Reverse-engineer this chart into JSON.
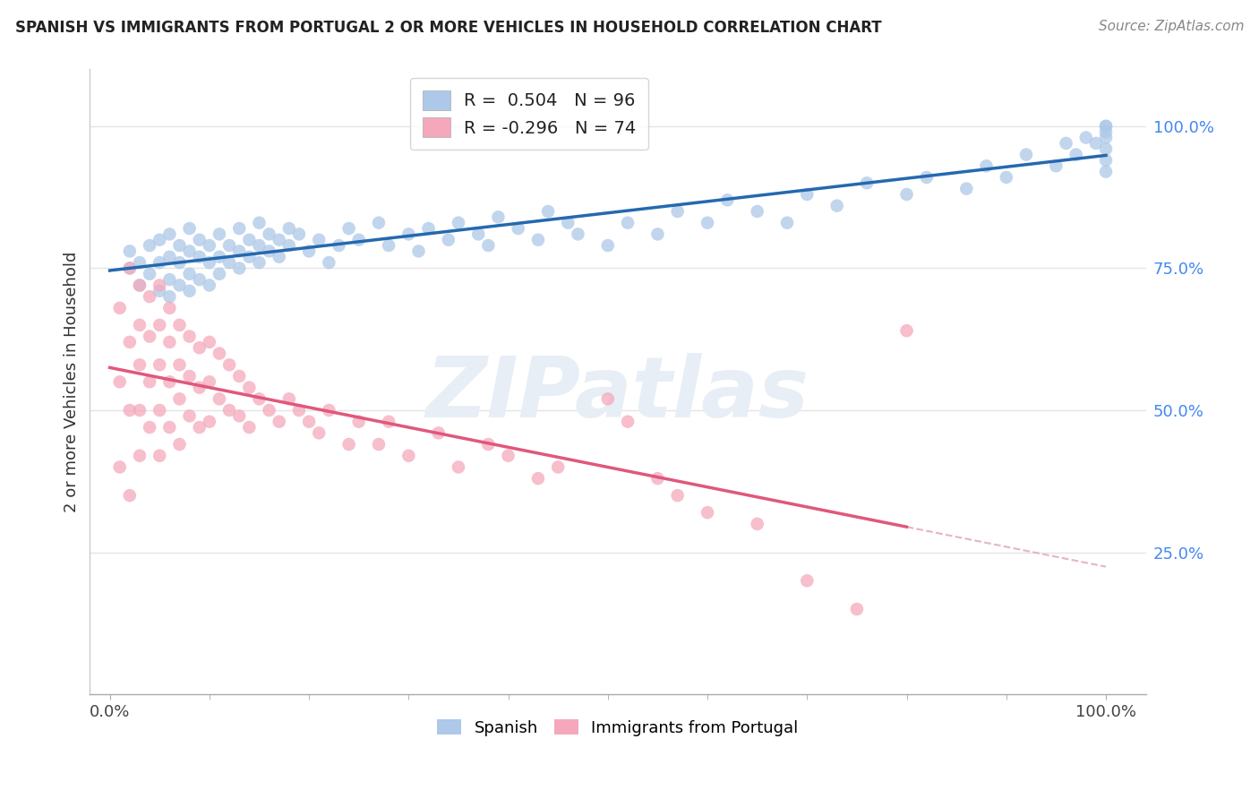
{
  "title": "SPANISH VS IMMIGRANTS FROM PORTUGAL 2 OR MORE VEHICLES IN HOUSEHOLD CORRELATION CHART",
  "source": "Source: ZipAtlas.com",
  "ylabel": "2 or more Vehicles in Household",
  "ytick_labels": [
    "25.0%",
    "50.0%",
    "75.0%",
    "100.0%"
  ],
  "ytick_values": [
    0.25,
    0.5,
    0.75,
    1.0
  ],
  "blue_R": 0.504,
  "blue_N": 96,
  "pink_R": -0.296,
  "pink_N": 74,
  "blue_color": "#adc8e8",
  "blue_line_color": "#2469af",
  "pink_color": "#f5a8bc",
  "pink_line_color": "#e0587c",
  "pink_dash_color": "#e8b4c0",
  "background_color": "#ffffff",
  "grid_color": "#e5e5e5",
  "title_color": "#222222",
  "source_color": "#888888",
  "ytick_color": "#4488ee",
  "xtick_color": "#444444",
  "ylabel_color": "#333333",
  "watermark_text": "ZIPatlas",
  "watermark_color": "#e8eef5",
  "blue_x": [
    0.02,
    0.02,
    0.03,
    0.03,
    0.04,
    0.04,
    0.05,
    0.05,
    0.05,
    0.06,
    0.06,
    0.06,
    0.06,
    0.07,
    0.07,
    0.07,
    0.08,
    0.08,
    0.08,
    0.08,
    0.09,
    0.09,
    0.09,
    0.1,
    0.1,
    0.1,
    0.11,
    0.11,
    0.11,
    0.12,
    0.12,
    0.13,
    0.13,
    0.13,
    0.14,
    0.14,
    0.15,
    0.15,
    0.15,
    0.16,
    0.16,
    0.17,
    0.17,
    0.18,
    0.18,
    0.19,
    0.2,
    0.21,
    0.22,
    0.23,
    0.24,
    0.25,
    0.27,
    0.28,
    0.3,
    0.31,
    0.32,
    0.34,
    0.35,
    0.37,
    0.38,
    0.39,
    0.41,
    0.43,
    0.44,
    0.46,
    0.47,
    0.5,
    0.52,
    0.55,
    0.57,
    0.6,
    0.62,
    0.65,
    0.68,
    0.7,
    0.73,
    0.76,
    0.8,
    0.82,
    0.86,
    0.88,
    0.9,
    0.92,
    0.95,
    0.96,
    0.97,
    0.98,
    0.99,
    1.0,
    1.0,
    1.0,
    1.0,
    1.0,
    1.0,
    1.0
  ],
  "blue_y": [
    0.75,
    0.78,
    0.72,
    0.76,
    0.74,
    0.79,
    0.71,
    0.76,
    0.8,
    0.7,
    0.73,
    0.77,
    0.81,
    0.72,
    0.76,
    0.79,
    0.71,
    0.74,
    0.78,
    0.82,
    0.73,
    0.77,
    0.8,
    0.72,
    0.76,
    0.79,
    0.74,
    0.77,
    0.81,
    0.76,
    0.79,
    0.75,
    0.78,
    0.82,
    0.77,
    0.8,
    0.76,
    0.79,
    0.83,
    0.78,
    0.81,
    0.77,
    0.8,
    0.79,
    0.82,
    0.81,
    0.78,
    0.8,
    0.76,
    0.79,
    0.82,
    0.8,
    0.83,
    0.79,
    0.81,
    0.78,
    0.82,
    0.8,
    0.83,
    0.81,
    0.79,
    0.84,
    0.82,
    0.8,
    0.85,
    0.83,
    0.81,
    0.79,
    0.83,
    0.81,
    0.85,
    0.83,
    0.87,
    0.85,
    0.83,
    0.88,
    0.86,
    0.9,
    0.88,
    0.91,
    0.89,
    0.93,
    0.91,
    0.95,
    0.93,
    0.97,
    0.95,
    0.98,
    0.97,
    0.92,
    0.94,
    0.96,
    0.98,
    0.99,
    1.0,
    1.0
  ],
  "pink_x": [
    0.01,
    0.01,
    0.01,
    0.02,
    0.02,
    0.02,
    0.02,
    0.03,
    0.03,
    0.03,
    0.03,
    0.03,
    0.04,
    0.04,
    0.04,
    0.04,
    0.05,
    0.05,
    0.05,
    0.05,
    0.05,
    0.06,
    0.06,
    0.06,
    0.06,
    0.07,
    0.07,
    0.07,
    0.07,
    0.08,
    0.08,
    0.08,
    0.09,
    0.09,
    0.09,
    0.1,
    0.1,
    0.1,
    0.11,
    0.11,
    0.12,
    0.12,
    0.13,
    0.13,
    0.14,
    0.14,
    0.15,
    0.16,
    0.17,
    0.18,
    0.19,
    0.2,
    0.21,
    0.22,
    0.24,
    0.25,
    0.27,
    0.28,
    0.3,
    0.33,
    0.35,
    0.38,
    0.4,
    0.43,
    0.45,
    0.5,
    0.52,
    0.55,
    0.57,
    0.6,
    0.65,
    0.7,
    0.75,
    0.8
  ],
  "pink_y": [
    0.68,
    0.55,
    0.4,
    0.75,
    0.62,
    0.5,
    0.35,
    0.72,
    0.65,
    0.58,
    0.5,
    0.42,
    0.7,
    0.63,
    0.55,
    0.47,
    0.72,
    0.65,
    0.58,
    0.5,
    0.42,
    0.68,
    0.62,
    0.55,
    0.47,
    0.65,
    0.58,
    0.52,
    0.44,
    0.63,
    0.56,
    0.49,
    0.61,
    0.54,
    0.47,
    0.62,
    0.55,
    0.48,
    0.6,
    0.52,
    0.58,
    0.5,
    0.56,
    0.49,
    0.54,
    0.47,
    0.52,
    0.5,
    0.48,
    0.52,
    0.5,
    0.48,
    0.46,
    0.5,
    0.44,
    0.48,
    0.44,
    0.48,
    0.42,
    0.46,
    0.4,
    0.44,
    0.42,
    0.38,
    0.4,
    0.52,
    0.48,
    0.38,
    0.35,
    0.32,
    0.3,
    0.2,
    0.15,
    0.64
  ]
}
